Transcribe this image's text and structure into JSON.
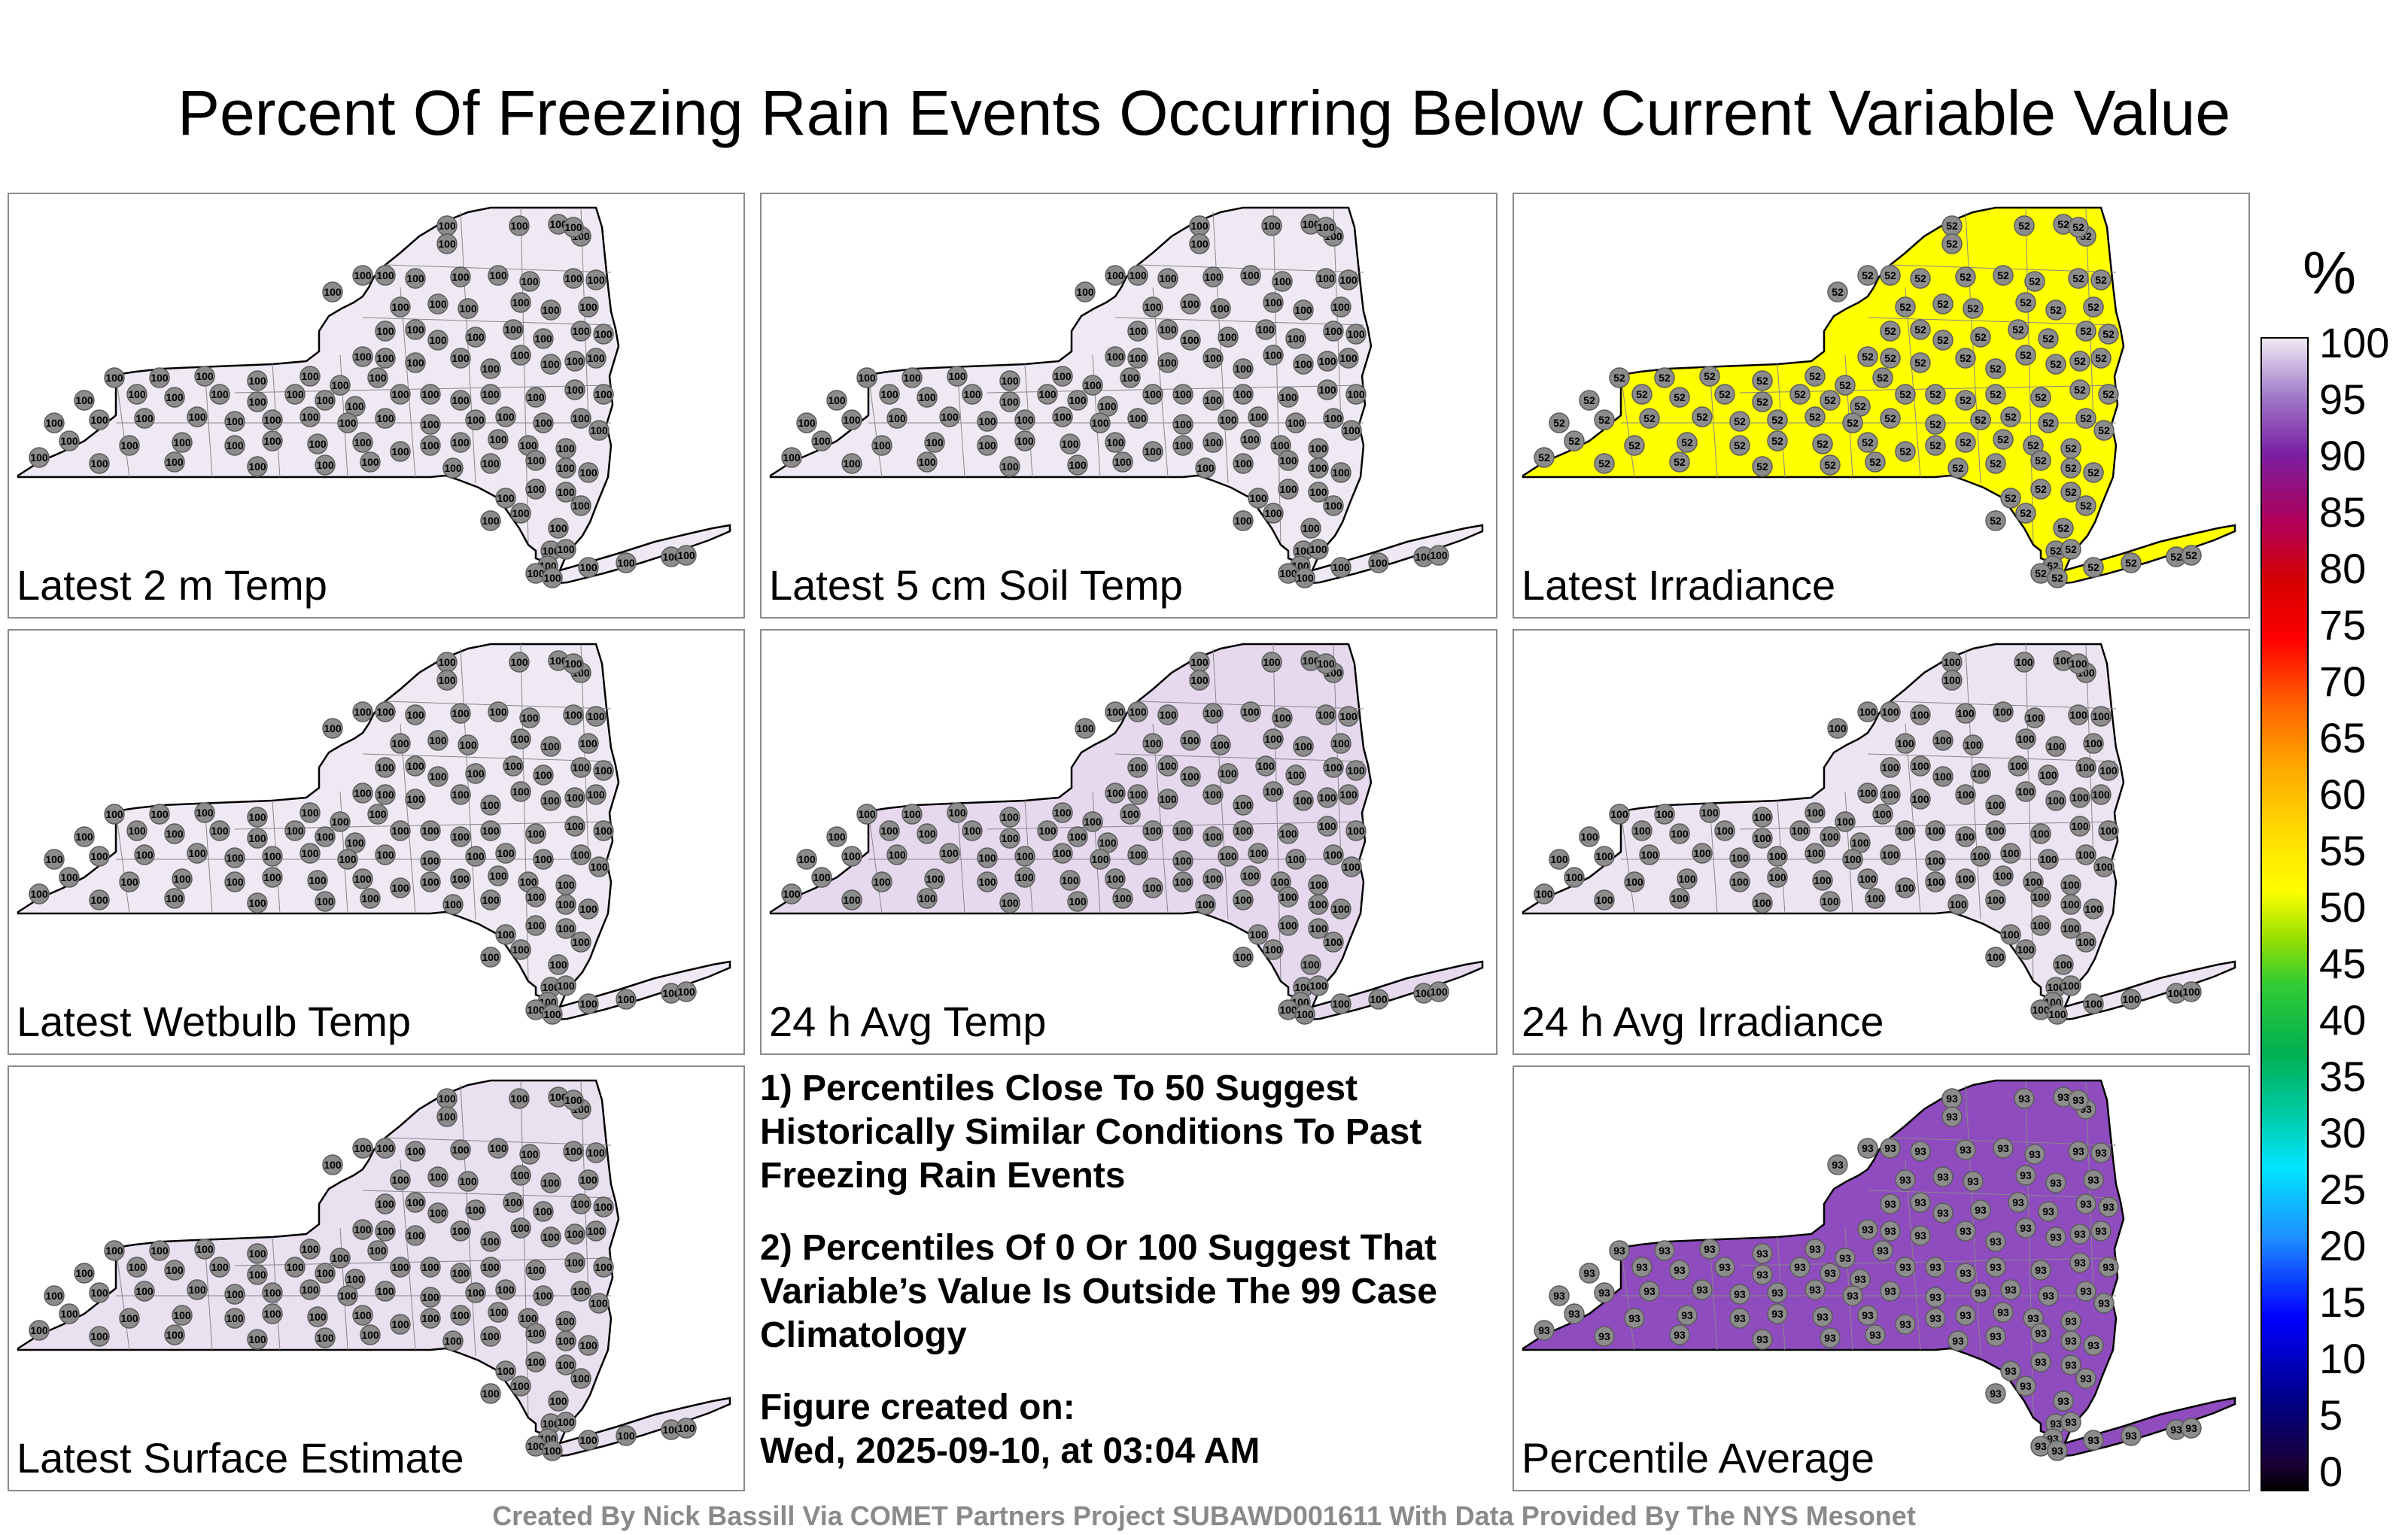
{
  "title": "Percent Of Freezing Rain Events Occurring Below Current Variable Value",
  "colorbar": {
    "unit": "%",
    "ticks": [
      "100",
      "95",
      "90",
      "85",
      "80",
      "75",
      "70",
      "65",
      "60",
      "55",
      "50",
      "45",
      "40",
      "35",
      "30",
      "25",
      "20",
      "15",
      "10",
      "5",
      "0"
    ]
  },
  "panels": [
    {
      "label": "Latest 2 m Temp",
      "value": 100,
      "fill": "#efe9f3"
    },
    {
      "label": "Latest 5 cm Soil Temp",
      "value": 100,
      "fill": "#efe9f3"
    },
    {
      "label": "Latest Irradiance",
      "value": 52,
      "fill": "#ffff00"
    },
    {
      "label": "Latest Wetbulb Temp",
      "value": 100,
      "fill": "#efe9f3"
    },
    {
      "label": "24 h Avg Temp",
      "value": 100,
      "fill": "#e6d9ee"
    },
    {
      "label": "24 h Avg Irradiance",
      "value": 100,
      "fill": "#ece4f1"
    },
    {
      "label": "Latest Surface Estimate",
      "value": 100,
      "fill": "#e9e0f0"
    },
    {
      "label": "Percentile Average",
      "value": 93,
      "fill": "#8f4cbf"
    }
  ],
  "notes": {
    "line1": "1) Percentiles Close To 50 Suggest Historically Similar Conditions To Past Freezing Rain Events",
    "line2": "2) Percentiles Of 0 Or 100 Suggest That Variable’s Value Is Outside The 99 Case Climatology",
    "created_label": "Figure created on:",
    "created_date": "Wed, 2025-09-10, at 03:04 AM"
  },
  "footer": "Created By Nick Bassill Via COMET Partners Project SUBAWD001611 With Data Provided By The NYS Mesonet"
}
